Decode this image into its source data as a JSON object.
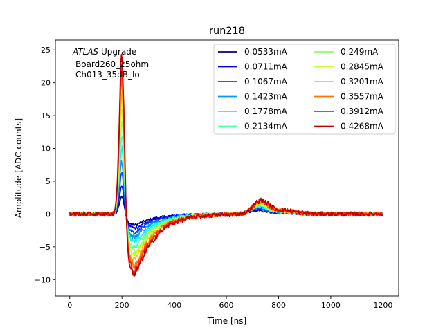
{
  "chart_data": {
    "type": "line",
    "title": "run218",
    "xlabel": "Time [ns]",
    "ylabel": "Amplitude [ADC counts]",
    "xlim": [
      -55,
      1260
    ],
    "ylim": [
      -12.5,
      26.5
    ],
    "xticks": [
      0,
      200,
      400,
      600,
      800,
      1000,
      1200
    ],
    "yticks": [
      -10,
      -5,
      0,
      5,
      10,
      15,
      20,
      25
    ],
    "annotation": {
      "italic": "ATLAS",
      "line1_rest": " Upgrade",
      "line2": "Board260_25ohm",
      "line3": "Ch013_35dB_lo"
    },
    "legend_position": "upper right",
    "legend_columns": 2,
    "series": [
      {
        "name": "0.0533mA",
        "color": "#00007f",
        "peak": 2.8,
        "undershoot": -1.8,
        "bump": 0.5
      },
      {
        "name": "0.0711mA",
        "color": "#0000ed",
        "peak": 4.2,
        "undershoot": -2.3,
        "bump": 0.6
      },
      {
        "name": "0.1067mA",
        "color": "#0040ff",
        "peak": 6.2,
        "undershoot": -3.0,
        "bump": 0.8
      },
      {
        "name": "0.1423mA",
        "color": "#0098ff",
        "peak": 8.2,
        "undershoot": -3.8,
        "bump": 0.9
      },
      {
        "name": "0.1778mA",
        "color": "#0cf4ea",
        "peak": 10.3,
        "undershoot": -4.6,
        "bump": 1.0
      },
      {
        "name": "0.2134mA",
        "color": "#4dffaa",
        "peak": 12.3,
        "undershoot": -5.4,
        "bump": 1.2
      },
      {
        "name": "0.249mA",
        "color": "#8dff69",
        "peak": 14.4,
        "undershoot": -6.1,
        "bump": 1.3
      },
      {
        "name": "0.2845mA",
        "color": "#c8ff2e",
        "peak": 16.3,
        "undershoot": -6.9,
        "bump": 1.4
      },
      {
        "name": "0.3201mA",
        "color": "#ffc300",
        "peak": 18.4,
        "undershoot": -7.6,
        "bump": 1.5
      },
      {
        "name": "0.3557mA",
        "color": "#ff7300",
        "peak": 20.6,
        "undershoot": -8.4,
        "bump": 1.6
      },
      {
        "name": "0.3912mA",
        "color": "#ff2100",
        "peak": 22.6,
        "undershoot": -9.2,
        "bump": 1.7
      },
      {
        "name": "0.4268mA",
        "color": "#c00000",
        "peak": 24.6,
        "undershoot": -10.0,
        "bump": 1.8
      }
    ]
  }
}
